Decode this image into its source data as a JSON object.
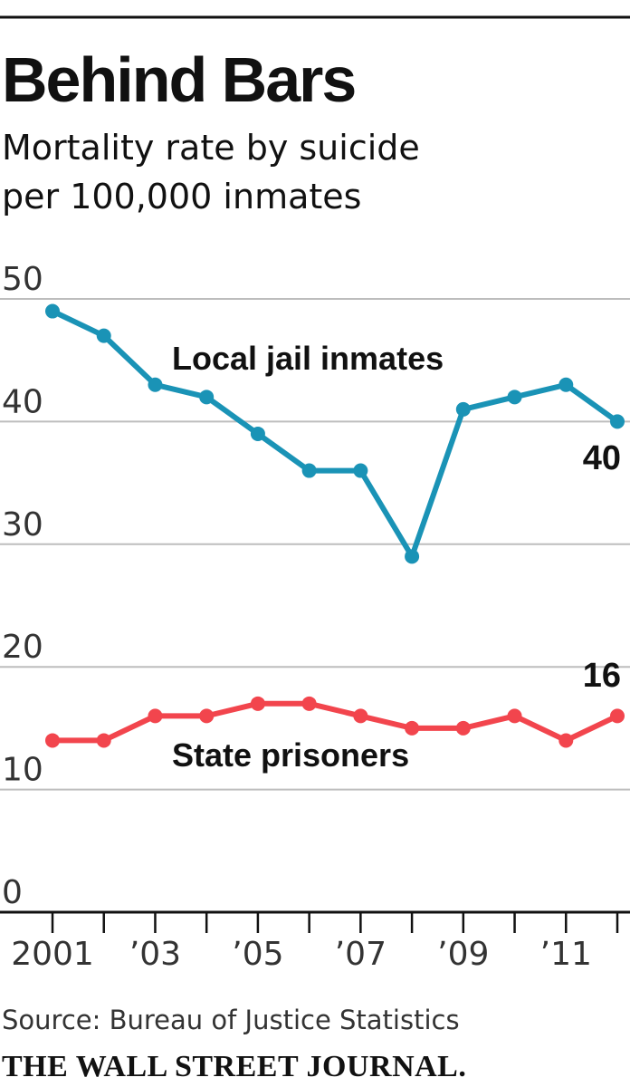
{
  "chart_data": {
    "type": "line",
    "title": "Behind Bars",
    "subtitle_lines": [
      "Mortality rate by suicide",
      "per 100,000 inmates"
    ],
    "x": [
      2001,
      2002,
      2003,
      2004,
      2005,
      2006,
      2007,
      2008,
      2009,
      2010,
      2011,
      2012
    ],
    "x_tick_labels": [
      "2001",
      "",
      "’03",
      "",
      "’05",
      "",
      "’07",
      "",
      "’09",
      "",
      "’11",
      ""
    ],
    "y_ticks": [
      0,
      10,
      20,
      30,
      40,
      50
    ],
    "y_tick_labels": [
      "0",
      "10",
      "20",
      "30",
      "40",
      "50"
    ],
    "ylim": [
      0,
      52
    ],
    "grid": true,
    "series": [
      {
        "name": "Local jail inmates",
        "color": "#1a93b6",
        "values": [
          49,
          47,
          43,
          42,
          39,
          36,
          36,
          29,
          41,
          42,
          43,
          40
        ],
        "end_label": "40"
      },
      {
        "name": "State prisoners",
        "color": "#f2454d",
        "values": [
          14,
          14,
          16,
          16,
          17,
          17,
          16,
          15,
          15,
          16,
          14,
          16
        ],
        "end_label": "16"
      }
    ],
    "source": "Source: Bureau of Justice Statistics",
    "credit": "THE WALL STREET JOURNAL."
  }
}
